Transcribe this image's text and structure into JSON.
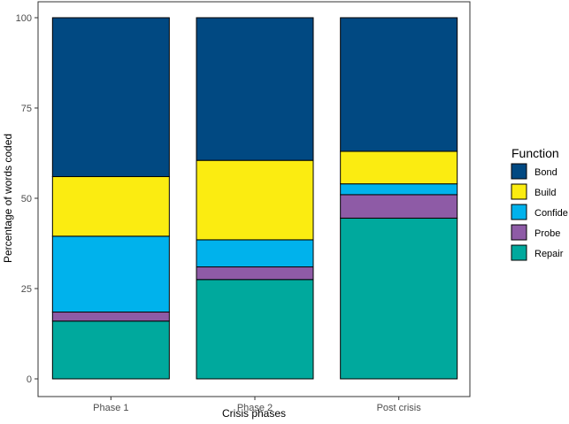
{
  "chart_data": {
    "type": "bar",
    "stacked": true,
    "categories": [
      "Phase 1",
      "Phase 2",
      "Post crisis"
    ],
    "series": [
      {
        "name": "Repair",
        "color": "#00a99d",
        "values": [
          16,
          27.5,
          44.5
        ]
      },
      {
        "name": "Probe",
        "color": "#8e5ba6",
        "values": [
          2.5,
          3.5,
          6.5
        ]
      },
      {
        "name": "Confide",
        "color": "#00b2ec",
        "values": [
          21,
          7.5,
          3
        ]
      },
      {
        "name": "Build",
        "color": "#fbec11",
        "values": [
          16.5,
          22,
          9
        ]
      },
      {
        "name": "Bond",
        "color": "#014982",
        "values": [
          44,
          39.5,
          37
        ]
      }
    ],
    "legend_order": [
      "Bond",
      "Build",
      "Confide",
      "Probe",
      "Repair"
    ],
    "legend_title": "Function",
    "legend_position": "right",
    "xlabel": "Crisis phases",
    "ylabel": "Percentage of words coded",
    "ylim": [
      0,
      100
    ],
    "yticks": [
      "0",
      "25",
      "50",
      "75",
      "100"
    ],
    "grid": false
  }
}
